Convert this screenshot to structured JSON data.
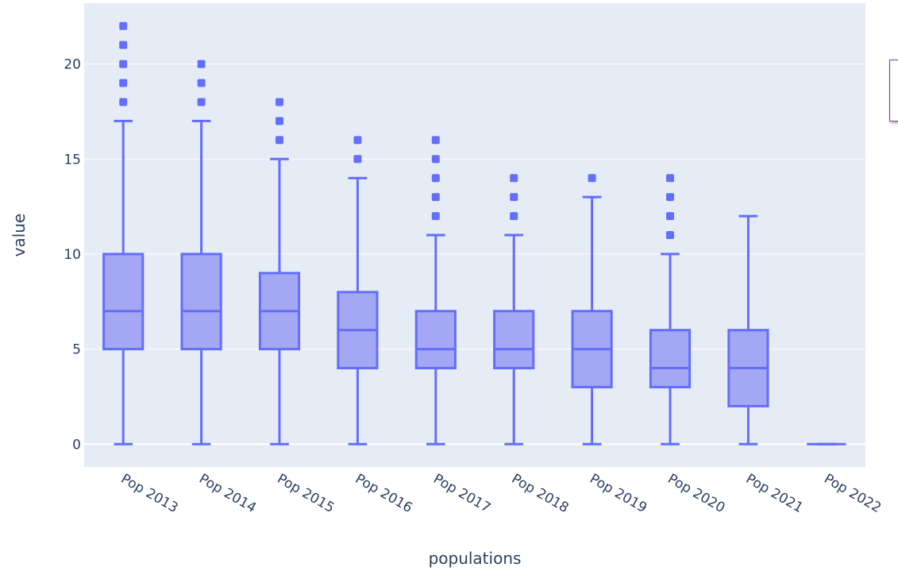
{
  "chart_data": {
    "type": "box",
    "xlabel": "populations",
    "ylabel": "value",
    "ylim": [
      -1.2,
      23.2
    ],
    "yticks": [
      0,
      5,
      10,
      15,
      20
    ],
    "grid": true,
    "colors": {
      "plot_background": "#e5ecf6",
      "grid": "#ffffff",
      "box_line": "#636efa",
      "box_fill": "#a3a7f4",
      "text": "#2a3f5f"
    },
    "categories": [
      "Pop 2013",
      "Pop 2014",
      "Pop 2015",
      "Pop 2016",
      "Pop 2017",
      "Pop 2018",
      "Pop 2019",
      "Pop 2020",
      "Pop 2021",
      "Pop 2022"
    ],
    "boxes": [
      {
        "category": "Pop 2013",
        "min": 0,
        "q1": 5,
        "median": 7,
        "q3": 10,
        "max": 17,
        "outliers": [
          18,
          19,
          20,
          21,
          22
        ]
      },
      {
        "category": "Pop 2014",
        "min": 0,
        "q1": 5,
        "median": 7,
        "q3": 10,
        "max": 17,
        "outliers": [
          18,
          19,
          20
        ]
      },
      {
        "category": "Pop 2015",
        "min": 0,
        "q1": 5,
        "median": 7,
        "q3": 9,
        "max": 15,
        "outliers": [
          16,
          17,
          18
        ]
      },
      {
        "category": "Pop 2016",
        "min": 0,
        "q1": 4,
        "median": 6,
        "q3": 8,
        "max": 14,
        "outliers": [
          15,
          16
        ]
      },
      {
        "category": "Pop 2017",
        "min": 0,
        "q1": 4,
        "median": 5,
        "q3": 7,
        "max": 11,
        "outliers": [
          12,
          13,
          14,
          15,
          16
        ]
      },
      {
        "category": "Pop 2018",
        "min": 0,
        "q1": 4,
        "median": 5,
        "q3": 7,
        "max": 11,
        "outliers": [
          12,
          13,
          14
        ]
      },
      {
        "category": "Pop 2019",
        "min": 0,
        "q1": 3,
        "median": 5,
        "q3": 7,
        "max": 13,
        "outliers": [
          14
        ]
      },
      {
        "category": "Pop 2020",
        "min": 0,
        "q1": 3,
        "median": 4,
        "q3": 6,
        "max": 10,
        "outliers": [
          11,
          12,
          13,
          14
        ]
      },
      {
        "category": "Pop 2021",
        "min": 0,
        "q1": 2,
        "median": 4,
        "q3": 6,
        "max": 12,
        "outliers": []
      },
      {
        "category": "Pop 2022",
        "min": 0,
        "q1": 0,
        "median": 0,
        "q3": 0,
        "max": 0,
        "outliers": []
      }
    ]
  }
}
